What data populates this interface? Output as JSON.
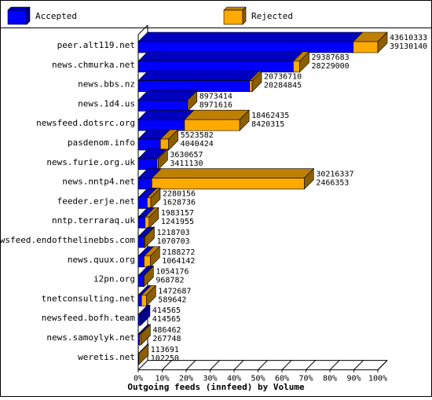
{
  "chart_data": {
    "type": "bar",
    "orientation": "horizontal",
    "stacked": true,
    "three_d": true,
    "title": "Outgoing feeds (innfeed) by Volume",
    "xlim": [
      0,
      100
    ],
    "x_ticks": [
      "0%",
      "10%",
      "20%",
      "30%",
      "40%",
      "50%",
      "60%",
      "70%",
      "80%",
      "90%",
      "100%"
    ],
    "legend_position": "top",
    "colors": {
      "accepted": "#0000ff",
      "rejected": "#ffaa00"
    },
    "series": [
      {
        "name": "Accepted",
        "color": "#0000ff"
      },
      {
        "name": "Rejected",
        "color": "#ffaa00"
      }
    ],
    "categories": [
      "peer.alt119.net",
      "news.chmurka.net",
      "news.bbs.nz",
      "news.1d4.us",
      "newsfeed.dotsrc.org",
      "pasdenom.info",
      "news.furie.org.uk",
      "news.nntp4.net",
      "feeder.erje.net",
      "nntp.terraraq.uk",
      "newsfeed.endofthelinebbs.com",
      "news.quux.org",
      "i2pn.org",
      "tnetconsulting.net",
      "newsfeed.bofh.team",
      "news.samoylyk.net",
      "weretis.net"
    ],
    "offered": [
      "43610333",
      "29387683",
      "20736710",
      "8973414",
      "18462435",
      "5523582",
      "3630657",
      "30216337",
      "2280156",
      "1983157",
      "1218703",
      "2188272",
      "1054176",
      "1472687",
      "414565",
      "486462",
      "113691"
    ],
    "accepted": [
      "39130140",
      "28229000",
      "20284845",
      "8971616",
      "8420315",
      "4040424",
      "3411130",
      "2466353",
      "1628736",
      "1241955",
      "1070703",
      "1064142",
      "968782",
      "589642",
      "414565",
      "267748",
      "102250"
    ]
  }
}
